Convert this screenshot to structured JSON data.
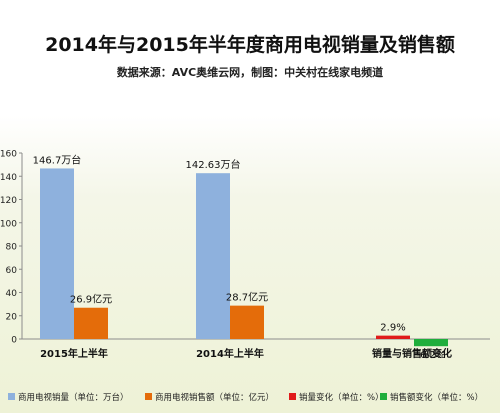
{
  "chart_data": {
    "type": "bar",
    "title": "2014年与2015年半年度商用电视销量及销售额",
    "subtitle": "数据来源：AVC奥维云网，制图：中关村在线家电频道",
    "categories": [
      "2015年上半年",
      "2014年上半年",
      "销量与销售额变化"
    ],
    "ylim": [
      0,
      160
    ],
    "yticks": [
      "0",
      "20",
      "40",
      "60",
      "80",
      "100",
      "120",
      "140",
      "160"
    ],
    "grid": false,
    "legend_position": "bottom",
    "series": [
      {
        "name": "商用电视销量（单位：万台）",
        "color": "#8eb1dd",
        "values": [
          146.7,
          142.63,
          null
        ],
        "labels": [
          "146.7万台",
          "142.63万台",
          ""
        ]
      },
      {
        "name": "商用电视销售额（单位：亿元）",
        "color": "#e46c0a",
        "values": [
          26.9,
          28.7,
          null
        ],
        "labels": [
          "26.9亿元",
          "28.7亿元",
          ""
        ]
      },
      {
        "name": "销量变化（单位：%）",
        "color": "#e01b1b",
        "values": [
          null,
          null,
          2.9
        ],
        "labels": [
          "",
          "",
          "2.9%"
        ]
      },
      {
        "name": "销售额变化（单位：%）",
        "color": "#1fae3c",
        "values": [
          null,
          null,
          -6.2
        ],
        "labels": [
          "",
          "",
          "-6.2%"
        ]
      }
    ]
  }
}
